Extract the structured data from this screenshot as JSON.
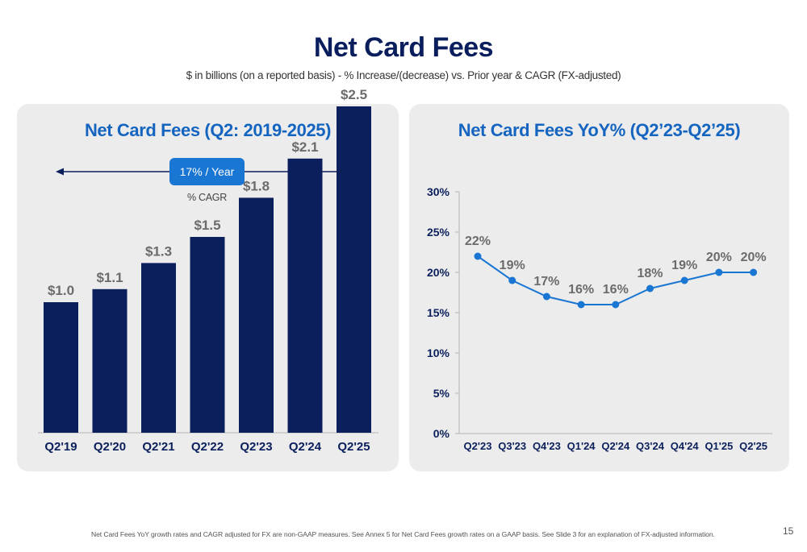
{
  "header": {
    "title": "Net Card Fees",
    "subtitle": "$ in billions (on a reported basis) - % Increase/(decrease) vs. Prior year & CAGR (FX-adjusted)"
  },
  "left_panel": {
    "title": "Net Card Fees (Q2: 2019-2025)",
    "cagr_badge": "17% / Year",
    "cagr_label": "% CAGR"
  },
  "right_panel": {
    "title": "Net Card Fees YoY% (Q2’23-Q2’25)"
  },
  "chart_data": [
    {
      "type": "bar",
      "title": "Net Card Fees (Q2: 2019-2025)",
      "categories": [
        "Q2'19",
        "Q2'20",
        "Q2'21",
        "Q2'22",
        "Q2'23",
        "Q2'24",
        "Q2'25"
      ],
      "values": [
        1.0,
        1.1,
        1.3,
        1.5,
        1.8,
        2.1,
        2.5
      ],
      "data_labels": [
        "$1.0",
        "$1.1",
        "$1.3",
        "$1.5",
        "$1.8",
        "$2.1",
        "$2.5"
      ],
      "bar_color": "#0b1f5c",
      "annotation": "17% / Year",
      "annotation_sub": "% CAGR",
      "grid": false
    },
    {
      "type": "line",
      "title": "Net Card Fees YoY% (Q2’23-Q2’25)",
      "categories": [
        "Q2'23",
        "Q3'23",
        "Q4'23",
        "Q1'24",
        "Q2'24",
        "Q3'24",
        "Q4'24",
        "Q1'25",
        "Q2'25"
      ],
      "values": [
        22,
        19,
        17,
        16,
        16,
        18,
        19,
        20,
        20
      ],
      "data_labels": [
        "22%",
        "19%",
        "17%",
        "16%",
        "16%",
        "18%",
        "19%",
        "20%",
        "20%"
      ],
      "yticks": [
        "0%",
        "5%",
        "10%",
        "15%",
        "20%",
        "25%",
        "30%"
      ],
      "ylim": [
        0,
        30
      ],
      "line_color": "#1976d2",
      "grid": false
    }
  ],
  "footer": {
    "footnote": "Net Card Fees YoY growth rates and CAGR adjusted for FX are non-GAAP measures. See Annex 5 for Net Card Fees growth rates on a GAAP basis. See Slide 3 for an explanation of FX-adjusted information.",
    "page_number": "15"
  },
  "colors": {
    "title": "#0a1e5e",
    "accent": "#1976d2",
    "panel_title": "#1565c0",
    "panel_bg": "#ececec",
    "label_grey": "#6b6b6b",
    "axis_text": "#0b1f5c"
  }
}
